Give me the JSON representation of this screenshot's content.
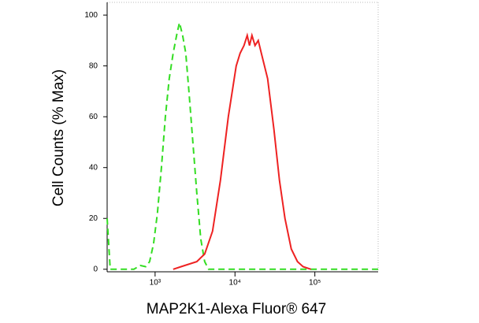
{
  "chart_data": {
    "type": "line",
    "xlabel": "MAP2K1-Alexa Fluor® 647",
    "ylabel": "Cell Counts (% Max)",
    "xscale": "log",
    "xlim": [
      251,
      620000
    ],
    "ylim": [
      -1,
      105
    ],
    "xticks": [
      {
        "value": 1000,
        "label": "10³"
      },
      {
        "value": 10000,
        "label": "10⁴"
      },
      {
        "value": 100000,
        "label": "10⁵"
      }
    ],
    "yticks": [
      0,
      20,
      40,
      60,
      80,
      100
    ],
    "series": [
      {
        "color": "#33dd22",
        "dash": true,
        "x": [
          251,
          274,
          542,
          650,
          762,
          853,
          956,
          1070,
          1199,
          1343,
          1504,
          1685,
          1887,
          2020,
          2213,
          2422,
          2653,
          2971,
          3327,
          3726,
          4174,
          4675,
          620000
        ],
        "values": [
          20,
          0,
          0,
          1.5,
          1,
          3,
          10,
          22,
          40,
          60,
          75,
          85,
          93,
          97,
          92,
          85,
          70,
          50,
          30,
          12,
          3,
          0,
          0
        ]
      },
      {
        "color": "#ee2222",
        "dash": false,
        "x": [
          1685,
          2113,
          3327,
          4174,
          5236,
          6572,
          8248,
          10350,
          11590,
          12980,
          14220,
          15210,
          16290,
          17830,
          19540,
          21380,
          25640,
          30740,
          36060,
          42270,
          50620,
          60650,
          71150,
          89310
        ],
        "values": [
          0,
          1,
          3,
          6,
          15,
          35,
          60,
          80,
          85,
          88,
          92,
          88,
          92,
          88,
          90,
          85,
          75,
          55,
          35,
          20,
          8,
          3,
          1,
          0
        ]
      }
    ]
  }
}
